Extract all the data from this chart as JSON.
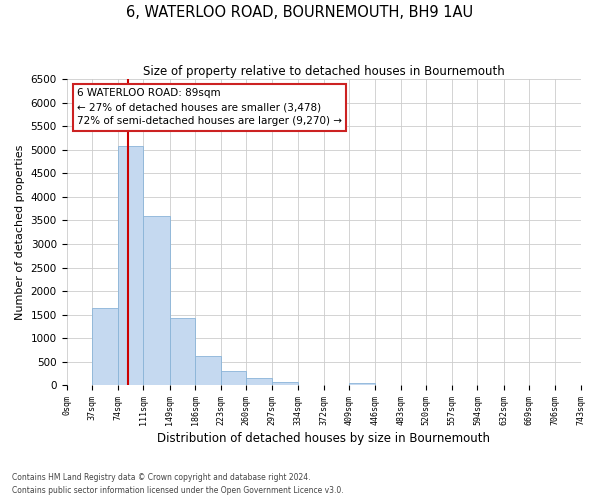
{
  "title": "6, WATERLOO ROAD, BOURNEMOUTH, BH9 1AU",
  "subtitle": "Size of property relative to detached houses in Bournemouth",
  "xlabel": "Distribution of detached houses by size in Bournemouth",
  "ylabel": "Number of detached properties",
  "bar_color": "#c5d9f0",
  "bar_edge_color": "#8ab4d8",
  "property_line_color": "#cc0000",
  "property_sqm": 89,
  "annotation_title": "6 WATERLOO ROAD: 89sqm",
  "annotation_line1": "← 27% of detached houses are smaller (3,478)",
  "annotation_line2": "72% of semi-detached houses are larger (9,270) →",
  "bin_edges": [
    0,
    37,
    74,
    111,
    149,
    186,
    223,
    260,
    297,
    334,
    372,
    409,
    446,
    483,
    520,
    557,
    594,
    632,
    669,
    706,
    743
  ],
  "bin_counts": [
    0,
    1650,
    5080,
    3600,
    1430,
    620,
    310,
    150,
    70,
    0,
    0,
    55,
    0,
    0,
    0,
    0,
    0,
    0,
    0,
    0
  ],
  "ylim": [
    0,
    6500
  ],
  "yticks": [
    0,
    500,
    1000,
    1500,
    2000,
    2500,
    3000,
    3500,
    4000,
    4500,
    5000,
    5500,
    6000,
    6500
  ],
  "footnote1": "Contains HM Land Registry data © Crown copyright and database right 2024.",
  "footnote2": "Contains public sector information licensed under the Open Government Licence v3.0.",
  "background_color": "#ffffff",
  "grid_color": "#cccccc",
  "annotation_box_color": "#cc2222"
}
